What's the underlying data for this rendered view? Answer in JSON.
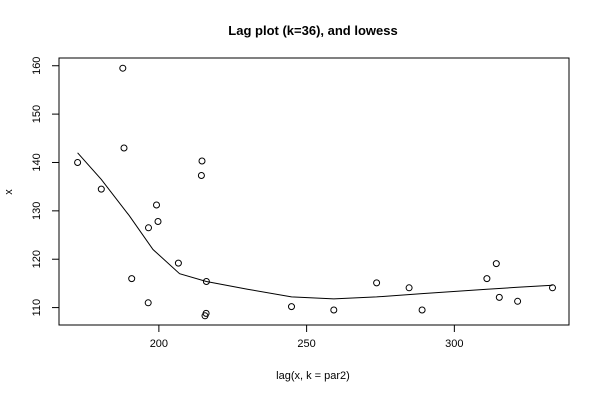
{
  "chart_data": {
    "type": "scatter",
    "title": "Lag plot (k=36), and lowess",
    "xlabel": "lag(x, k = par2)",
    "ylabel": "x",
    "xlim": [
      166.2,
      338.8
    ],
    "ylim": [
      106.4,
      161.6
    ],
    "x_ticks": [
      200,
      250,
      300
    ],
    "y_ticks": [
      110,
      120,
      130,
      140,
      150,
      160
    ],
    "grid": false,
    "legend": "none",
    "series": [
      {
        "type": "scatter",
        "marker": "open-circle",
        "points": [
          [
            172.5,
            140.0
          ],
          [
            180.5,
            134.5
          ],
          [
            187.8,
            159.5
          ],
          [
            188.2,
            143.0
          ],
          [
            190.8,
            116.0
          ],
          [
            196.4,
            111.0
          ],
          [
            196.5,
            126.5
          ],
          [
            199.2,
            131.2
          ],
          [
            199.7,
            127.8
          ],
          [
            206.6,
            119.2
          ],
          [
            214.4,
            137.3
          ],
          [
            214.6,
            140.3
          ],
          [
            215.6,
            108.3
          ],
          [
            216.0,
            108.8
          ],
          [
            216.1,
            115.4
          ],
          [
            244.9,
            110.2
          ],
          [
            259.2,
            109.5
          ],
          [
            273.7,
            115.1
          ],
          [
            284.7,
            114.1
          ],
          [
            289.1,
            109.5
          ],
          [
            311.0,
            116.0
          ],
          [
            314.2,
            119.1
          ],
          [
            315.2,
            112.1
          ],
          [
            321.4,
            111.3
          ],
          [
            333.2,
            114.1
          ]
        ]
      },
      {
        "type": "line",
        "points": [
          [
            172.5,
            142.0
          ],
          [
            180.5,
            136.5
          ],
          [
            190.0,
            129.0
          ],
          [
            198.0,
            122.0
          ],
          [
            207.0,
            117.0
          ],
          [
            216.1,
            115.4
          ],
          [
            230.0,
            113.8
          ],
          [
            244.9,
            112.2
          ],
          [
            259.2,
            111.8
          ],
          [
            273.7,
            112.2
          ],
          [
            289.1,
            112.9
          ],
          [
            311.0,
            113.8
          ],
          [
            321.4,
            114.2
          ],
          [
            333.2,
            114.6
          ]
        ]
      }
    ]
  }
}
